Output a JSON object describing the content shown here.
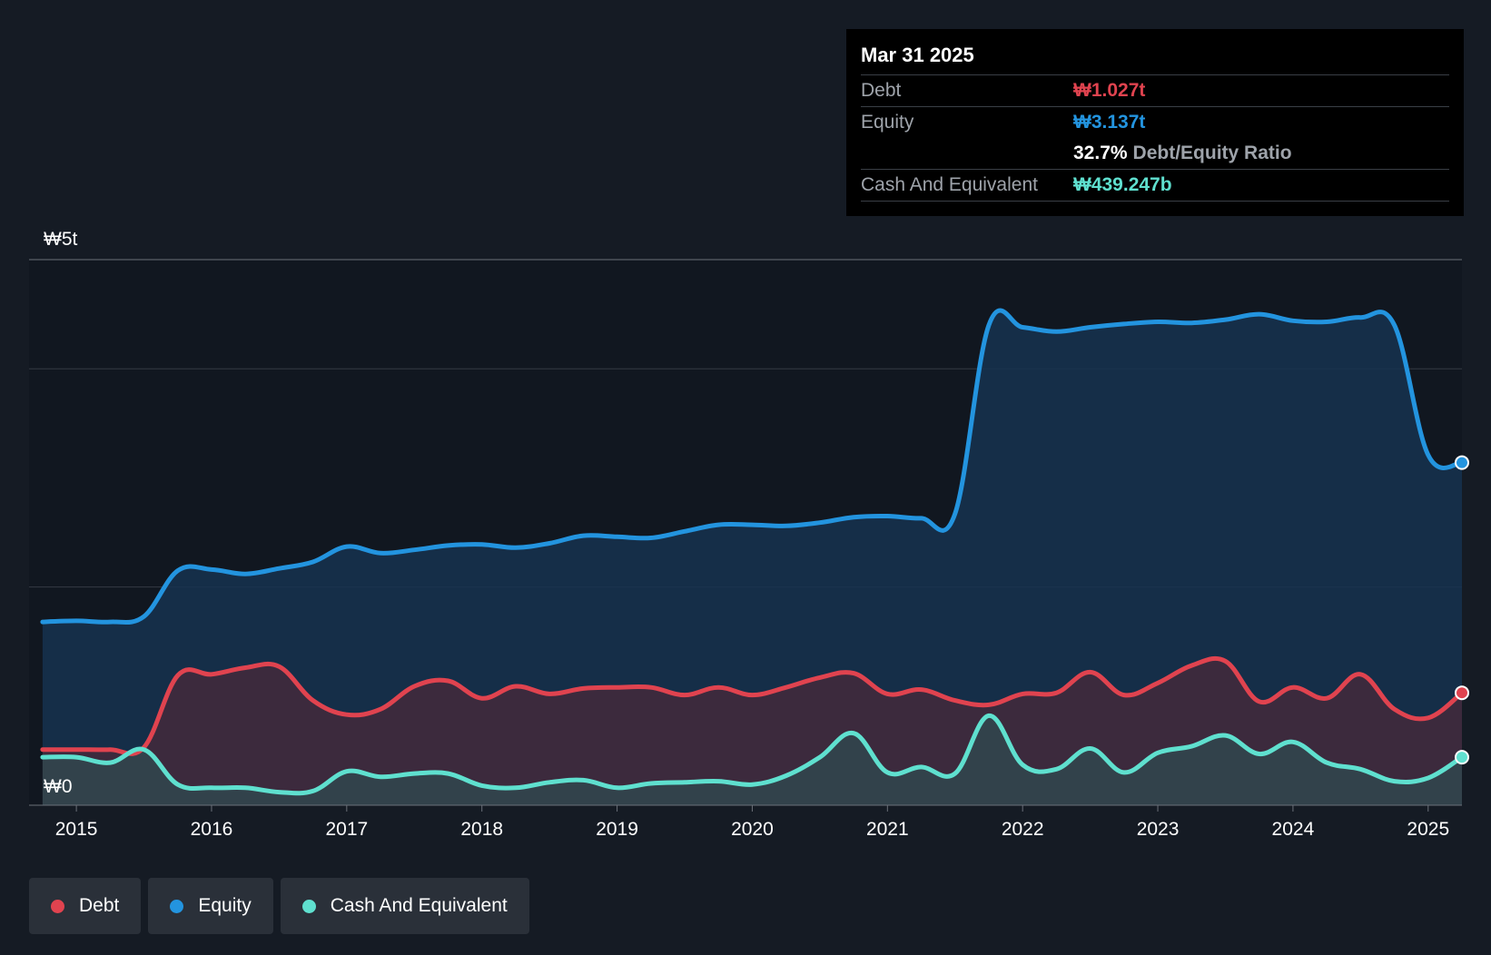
{
  "colors": {
    "debt": "#e0434f",
    "equity": "#2394df",
    "cash": "#5fe0cf",
    "background": "#151b24",
    "plot_background": "#111720"
  },
  "tooltip": {
    "date": "Mar 31 2025",
    "debt_label": "Debt",
    "debt_value": "₩1.027t",
    "equity_label": "Equity",
    "equity_value": "₩3.137t",
    "ratio_value": "32.7%",
    "ratio_label": "Debt/Equity Ratio",
    "cash_label": "Cash And Equivalent",
    "cash_value": "₩439.247b"
  },
  "legend": [
    {
      "label": "Debt",
      "key": "debt"
    },
    {
      "label": "Equity",
      "key": "equity"
    },
    {
      "label": "Cash And Equivalent",
      "key": "cash"
    }
  ],
  "chart_data": {
    "type": "area",
    "title": "",
    "xlabel": "",
    "ylabel": "",
    "y_unit": "₩t",
    "ylim": [
      0,
      5
    ],
    "y_tick_labels": [
      {
        "value": 5,
        "label": "₩5t"
      },
      {
        "value": 0,
        "label": "₩0"
      }
    ],
    "y_gridlines": [
      2,
      4,
      5
    ],
    "xlim": [
      2014.65,
      2025.25
    ],
    "x_ticks": [
      "2015",
      "2016",
      "2017",
      "2018",
      "2019",
      "2020",
      "2021",
      "2022",
      "2023",
      "2024",
      "2025"
    ],
    "legend_position": "bottom-left",
    "series": [
      {
        "name": "Equity",
        "key": "equity",
        "x": [
          2014.75,
          2015.0,
          2015.25,
          2015.5,
          2015.75,
          2016.0,
          2016.25,
          2016.5,
          2016.75,
          2017.0,
          2017.25,
          2017.5,
          2017.75,
          2018.0,
          2018.25,
          2018.5,
          2018.75,
          2019.0,
          2019.25,
          2019.5,
          2019.75,
          2020.0,
          2020.25,
          2020.5,
          2020.75,
          2021.0,
          2021.25,
          2021.5,
          2021.75,
          2022.0,
          2022.25,
          2022.5,
          2022.75,
          2023.0,
          2023.25,
          2023.5,
          2023.75,
          2024.0,
          2024.25,
          2024.5,
          2024.75,
          2025.0,
          2025.25
        ],
        "values": [
          1.68,
          1.69,
          1.68,
          1.73,
          2.15,
          2.16,
          2.12,
          2.17,
          2.23,
          2.37,
          2.31,
          2.34,
          2.38,
          2.39,
          2.36,
          2.4,
          2.47,
          2.46,
          2.45,
          2.51,
          2.57,
          2.57,
          2.56,
          2.59,
          2.64,
          2.65,
          2.63,
          2.67,
          4.4,
          4.38,
          4.34,
          4.38,
          4.41,
          4.43,
          4.42,
          4.45,
          4.5,
          4.44,
          4.43,
          4.47,
          4.4,
          3.21,
          3.14
        ]
      },
      {
        "name": "Debt",
        "key": "debt",
        "x": [
          2014.75,
          2015.0,
          2015.25,
          2015.5,
          2015.75,
          2016.0,
          2016.25,
          2016.5,
          2016.75,
          2017.0,
          2017.25,
          2017.5,
          2017.75,
          2018.0,
          2018.25,
          2018.5,
          2018.75,
          2019.0,
          2019.25,
          2019.5,
          2019.75,
          2020.0,
          2020.25,
          2020.5,
          2020.75,
          2021.0,
          2021.25,
          2021.5,
          2021.75,
          2022.0,
          2022.25,
          2022.5,
          2022.75,
          2023.0,
          2023.25,
          2023.5,
          2023.75,
          2024.0,
          2024.25,
          2024.5,
          2024.75,
          2025.0,
          2025.25
        ],
        "values": [
          0.51,
          0.51,
          0.51,
          0.53,
          1.19,
          1.2,
          1.26,
          1.27,
          0.96,
          0.83,
          0.88,
          1.09,
          1.14,
          0.98,
          1.09,
          1.02,
          1.07,
          1.08,
          1.08,
          1.01,
          1.08,
          1.01,
          1.08,
          1.17,
          1.21,
          1.02,
          1.06,
          0.96,
          0.92,
          1.02,
          1.03,
          1.22,
          1.01,
          1.12,
          1.28,
          1.32,
          0.95,
          1.08,
          0.98,
          1.2,
          0.88,
          0.8,
          1.03
        ]
      },
      {
        "name": "Cash And Equivalent",
        "key": "cash",
        "x": [
          2014.75,
          2015.0,
          2015.25,
          2015.5,
          2015.75,
          2016.0,
          2016.25,
          2016.5,
          2016.75,
          2017.0,
          2017.25,
          2017.5,
          2017.75,
          2018.0,
          2018.25,
          2018.5,
          2018.75,
          2019.0,
          2019.25,
          2019.5,
          2019.75,
          2020.0,
          2020.25,
          2020.5,
          2020.75,
          2021.0,
          2021.25,
          2021.5,
          2021.75,
          2022.0,
          2022.25,
          2022.5,
          2022.75,
          2023.0,
          2023.25,
          2023.5,
          2023.75,
          2024.0,
          2024.25,
          2024.5,
          2024.75,
          2025.0,
          2025.25
        ],
        "values": [
          0.44,
          0.44,
          0.39,
          0.51,
          0.19,
          0.16,
          0.16,
          0.12,
          0.13,
          0.31,
          0.26,
          0.29,
          0.29,
          0.18,
          0.16,
          0.21,
          0.23,
          0.16,
          0.2,
          0.21,
          0.22,
          0.19,
          0.27,
          0.44,
          0.66,
          0.3,
          0.35,
          0.29,
          0.82,
          0.37,
          0.33,
          0.52,
          0.3,
          0.48,
          0.54,
          0.64,
          0.47,
          0.58,
          0.39,
          0.33,
          0.22,
          0.25,
          0.44
        ]
      }
    ]
  }
}
